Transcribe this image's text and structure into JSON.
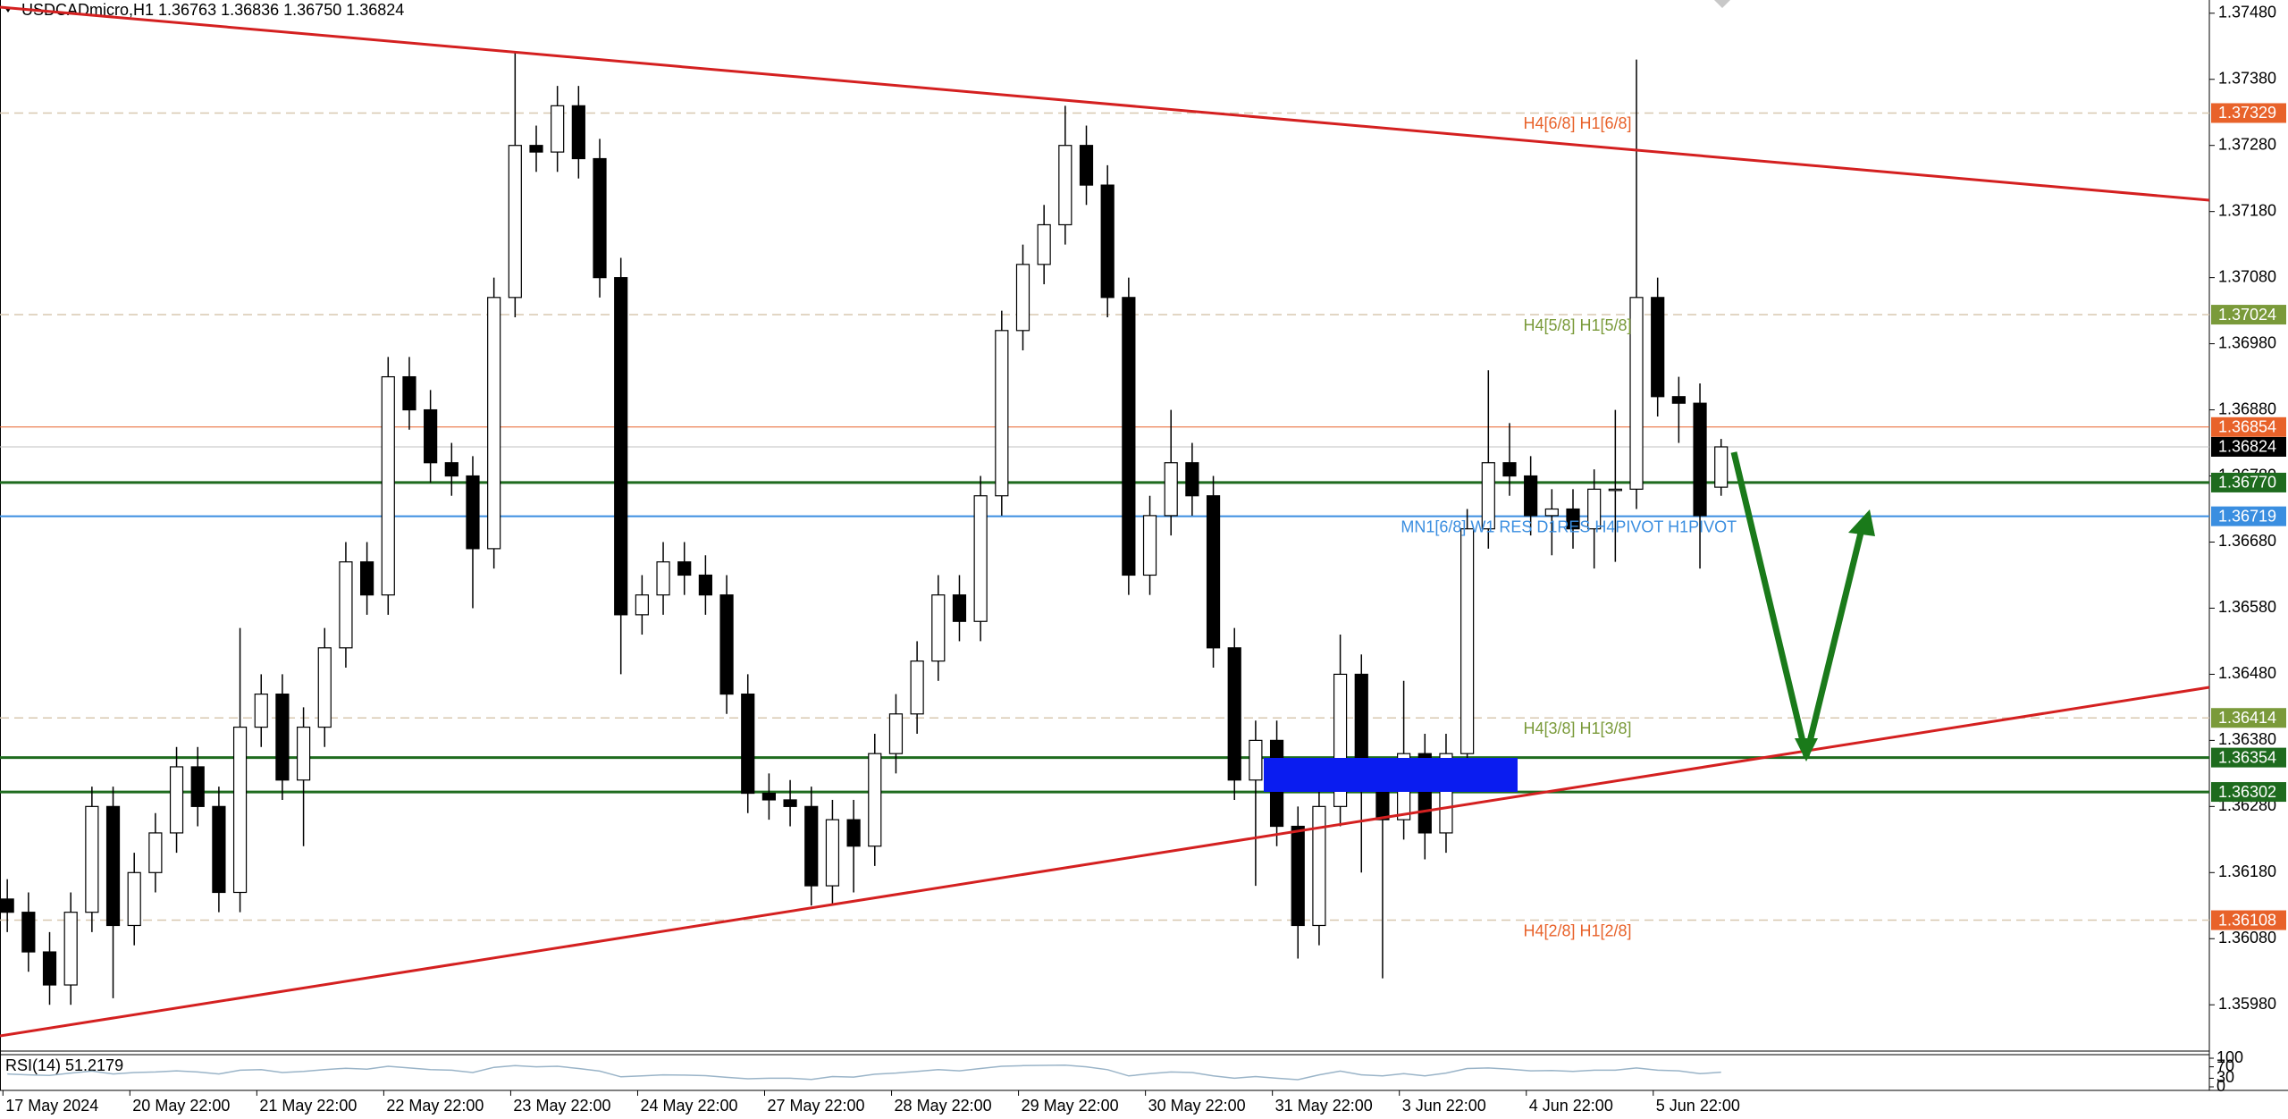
{
  "chart_data": {
    "type": "candlestick",
    "title": "USDCADmicro,H1  1.36763 1.36836 1.36750 1.36824",
    "categories": [
      "17 May 2024",
      null,
      null,
      null,
      null,
      null,
      "20 May 22:00",
      null,
      null,
      null,
      null,
      null,
      "21 May 22:00",
      null,
      null,
      null,
      null,
      null,
      "22 May 22:00",
      null,
      null,
      null,
      null,
      null,
      "23 May 22:00",
      null,
      null,
      null,
      null,
      null,
      "24 May 22:00",
      null,
      null,
      null,
      null,
      null,
      "27 May 22:00",
      null,
      null,
      null,
      null,
      null,
      "28 May 22:00",
      null,
      null,
      null,
      null,
      null,
      "29 May 22:00",
      null,
      null,
      null,
      null,
      null,
      "30 May 22:00",
      null,
      null,
      null,
      null,
      null,
      "31 May 22:00",
      null,
      null,
      null,
      null,
      null,
      "3 Jun 22:00",
      null,
      null,
      null,
      null,
      null,
      "4 Jun 22:00",
      null,
      null,
      null,
      null,
      null,
      "5 Jun 22:00",
      null,
      null,
      null
    ],
    "open": [
      1.3614,
      1.3612,
      1.3606,
      1.3601,
      1.3612,
      1.3628,
      1.361,
      1.3618,
      1.3624,
      1.3634,
      1.3628,
      1.3615,
      1.364,
      1.3645,
      1.3632,
      1.364,
      1.3652,
      1.3665,
      1.366,
      1.3693,
      1.3688,
      1.368,
      1.3678,
      1.3667,
      1.3705,
      1.3728,
      1.3727,
      1.3734,
      1.3726,
      1.3708,
      1.3657,
      1.366,
      1.3665,
      1.3663,
      1.366,
      1.3645,
      1.363,
      1.3629,
      1.3628,
      1.3616,
      1.3626,
      1.3622,
      1.3636,
      1.3642,
      1.365,
      1.366,
      1.3656,
      1.3675,
      1.37,
      1.371,
      1.3716,
      1.3728,
      1.3722,
      1.3705,
      1.3663,
      1.3672,
      1.368,
      1.3675,
      1.3652,
      1.3632,
      1.3638,
      1.3625,
      1.361,
      1.3628,
      1.3648,
      1.3632,
      1.3626,
      1.3636,
      1.3624,
      1.3636,
      1.367,
      1.368,
      1.3678,
      1.3672,
      1.3673,
      1.367,
      1.3676,
      1.3676,
      1.3705,
      1.369,
      1.3689,
      1.36763
    ],
    "high": [
      1.3617,
      1.3615,
      1.3609,
      1.3615,
      1.3631,
      1.3631,
      1.3621,
      1.3627,
      1.3637,
      1.3637,
      1.3631,
      1.3655,
      1.3648,
      1.3648,
      1.3643,
      1.3655,
      1.3668,
      1.3668,
      1.3696,
      1.3696,
      1.3691,
      1.3683,
      1.3681,
      1.3708,
      1.3742,
      1.3731,
      1.3737,
      1.3737,
      1.3729,
      1.3711,
      1.3663,
      1.3668,
      1.3668,
      1.3666,
      1.3663,
      1.3648,
      1.3633,
      1.3632,
      1.3631,
      1.3629,
      1.3629,
      1.3639,
      1.3645,
      1.3653,
      1.3663,
      1.3663,
      1.3678,
      1.3703,
      1.3713,
      1.3719,
      1.3734,
      1.3731,
      1.3725,
      1.3708,
      1.3675,
      1.3688,
      1.3683,
      1.3678,
      1.3655,
      1.3641,
      1.3641,
      1.3628,
      1.3631,
      1.3654,
      1.3651,
      1.3635,
      1.3647,
      1.3639,
      1.3639,
      1.3673,
      1.3694,
      1.3686,
      1.3681,
      1.3676,
      1.3676,
      1.3679,
      1.3688,
      1.3741,
      1.3708,
      1.3693,
      1.3692,
      1.36836
    ],
    "low": [
      1.3609,
      1.3603,
      1.3598,
      1.3598,
      1.3609,
      1.3599,
      1.3607,
      1.3615,
      1.3621,
      1.3625,
      1.3612,
      1.3612,
      1.3637,
      1.3629,
      1.3622,
      1.3637,
      1.3649,
      1.3657,
      1.3657,
      1.3685,
      1.3677,
      1.3675,
      1.3658,
      1.3664,
      1.3702,
      1.3724,
      1.3724,
      1.3723,
      1.3705,
      1.3648,
      1.3654,
      1.3657,
      1.366,
      1.3657,
      1.3642,
      1.3627,
      1.3626,
      1.3625,
      1.3613,
      1.3613,
      1.3615,
      1.3619,
      1.3633,
      1.3639,
      1.3647,
      1.3653,
      1.3653,
      1.3672,
      1.3697,
      1.3707,
      1.3713,
      1.3719,
      1.3702,
      1.366,
      1.366,
      1.3669,
      1.3672,
      1.3649,
      1.3629,
      1.3616,
      1.3622,
      1.3605,
      1.3607,
      1.3625,
      1.3618,
      1.3602,
      1.3623,
      1.362,
      1.3621,
      1.3633,
      1.3667,
      1.3675,
      1.3669,
      1.3666,
      1.3667,
      1.3664,
      1.3665,
      1.3673,
      1.3687,
      1.3683,
      1.3664,
      1.3675
    ],
    "close": [
      1.3612,
      1.3606,
      1.3601,
      1.3612,
      1.3628,
      1.361,
      1.3618,
      1.3624,
      1.3634,
      1.3628,
      1.3615,
      1.364,
      1.3645,
      1.3632,
      1.364,
      1.3652,
      1.3665,
      1.366,
      1.3693,
      1.3688,
      1.368,
      1.3678,
      1.3667,
      1.3705,
      1.3728,
      1.3727,
      1.3734,
      1.3726,
      1.3708,
      1.3657,
      1.366,
      1.3665,
      1.3663,
      1.366,
      1.3645,
      1.363,
      1.3629,
      1.3628,
      1.3616,
      1.3626,
      1.3622,
      1.3636,
      1.3642,
      1.365,
      1.366,
      1.3656,
      1.3675,
      1.37,
      1.371,
      1.3716,
      1.3728,
      1.3722,
      1.3705,
      1.3663,
      1.3672,
      1.368,
      1.3675,
      1.3652,
      1.3632,
      1.3638,
      1.3625,
      1.361,
      1.3628,
      1.3648,
      1.3632,
      1.3626,
      1.3636,
      1.3624,
      1.3636,
      1.367,
      1.368,
      1.3678,
      1.3672,
      1.3673,
      1.367,
      1.3676,
      1.3676,
      1.3705,
      1.369,
      1.3689,
      1.3672,
      1.36824
    ],
    "ylim": [
      1.3591,
      1.375
    ],
    "yticks": [
      {
        "value": 1.3748,
        "label": "1.37480"
      },
      {
        "value": 1.3738,
        "label": "1.37380"
      },
      {
        "value": 1.3728,
        "label": "1.37280"
      },
      {
        "value": 1.3718,
        "label": "1.37180"
      },
      {
        "value": 1.3708,
        "label": "1.37080"
      },
      {
        "value": 1.3698,
        "label": "1.36980"
      },
      {
        "value": 1.3688,
        "label": "1.36880"
      },
      {
        "value": 1.3678,
        "label": "1.36780"
      },
      {
        "value": 1.3668,
        "label": "1.36680"
      },
      {
        "value": 1.3658,
        "label": "1.36580"
      },
      {
        "value": 1.3648,
        "label": "1.36480"
      },
      {
        "value": 1.3638,
        "label": "1.36380"
      },
      {
        "value": 1.3628,
        "label": "1.36280"
      },
      {
        "value": 1.3618,
        "label": "1.36180"
      },
      {
        "value": 1.3608,
        "label": "1.36080"
      },
      {
        "value": 1.3598,
        "label": "1.35980"
      }
    ],
    "grid": false,
    "levels": [
      {
        "value": 1.37329,
        "price_label": "1.37329",
        "color": "#e8622a",
        "style": "dash",
        "text": "H4[6/8] H1[6/8]"
      },
      {
        "value": 1.37024,
        "price_label": "1.37024",
        "color": "#7a9a3a",
        "style": "dash",
        "text": "H4[5/8] H1[5/8]"
      },
      {
        "value": 1.36854,
        "price_label": "1.36854",
        "color": "#e8622a",
        "style": "thin"
      },
      {
        "value": 1.36824,
        "price_label": "1.36824",
        "color": "#000000",
        "style": "current"
      },
      {
        "value": 1.3677,
        "price_label": "1.36770",
        "color": "#1e6b1e",
        "style": "bold"
      },
      {
        "value": 1.36719,
        "price_label": "1.36719",
        "color": "#3a8ee0",
        "style": "solid",
        "text": "MN1[6/8] W1 RES D1RES H4PIVOT H1PIVOT"
      },
      {
        "value": 1.36414,
        "price_label": "1.36414",
        "color": "#7a9a3a",
        "style": "dash",
        "text": "H4[3/8] H1[3/8]"
      },
      {
        "value": 1.36354,
        "price_label": "1.36354",
        "color": "#1e6b1e",
        "style": "bold"
      },
      {
        "value": 1.36302,
        "price_label": "1.36302",
        "color": "#1e6b1e",
        "style": "bold"
      },
      {
        "value": 1.36108,
        "price_label": "1.36108",
        "color": "#e8622a",
        "style": "dash",
        "text": "H4[2/8] H1[2/8]"
      }
    ],
    "rsi": {
      "title": "RSI(14) 51.2179",
      "color": "#9ab4c8",
      "ylim": [
        0,
        100
      ],
      "yticks": [
        100,
        70,
        30,
        0
      ],
      "values": [
        45,
        42,
        40,
        48,
        55,
        45,
        50,
        52,
        56,
        52,
        45,
        58,
        60,
        50,
        54,
        60,
        65,
        62,
        72,
        66,
        60,
        58,
        50,
        68,
        74,
        70,
        72,
        64,
        55,
        35,
        38,
        42,
        41,
        39,
        33,
        28,
        30,
        30,
        26,
        36,
        34,
        44,
        48,
        54,
        60,
        56,
        64,
        72,
        74,
        75,
        76,
        70,
        60,
        38,
        46,
        52,
        50,
        38,
        30,
        36,
        30,
        25,
        42,
        55,
        42,
        38,
        46,
        38,
        48,
        64,
        66,
        62,
        56,
        57,
        54,
        58,
        58,
        66,
        58,
        56,
        46,
        51.2179
      ]
    }
  }
}
